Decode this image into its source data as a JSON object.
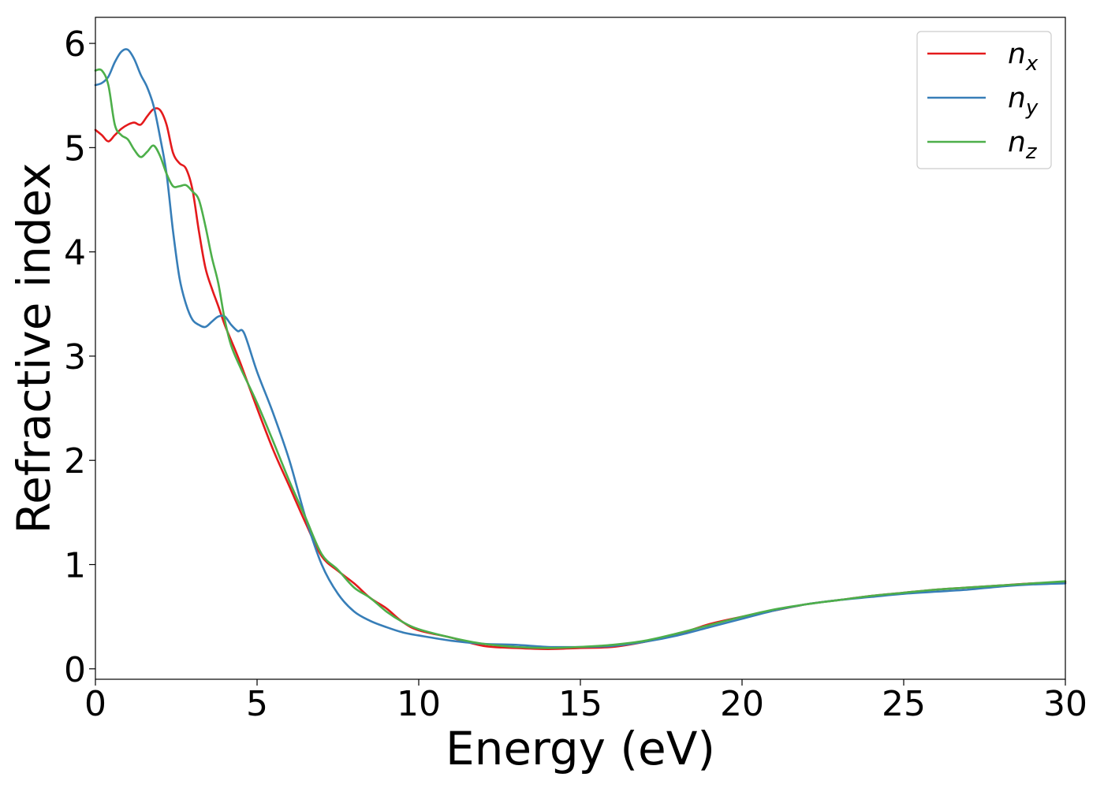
{
  "chart_data": {
    "type": "line",
    "xlabel": "Energy (eV)",
    "ylabel": "Refractive index",
    "xlim": [
      0,
      30
    ],
    "ylim": [
      -0.1,
      6.25
    ],
    "xticks": [
      0,
      5,
      10,
      15,
      20,
      25,
      30
    ],
    "yticks": [
      0,
      1,
      2,
      3,
      4,
      5,
      6
    ],
    "grid": false,
    "legend_position": "top-right",
    "series": [
      {
        "name": "n",
        "subscript": "x",
        "color": "#e41a1c",
        "x": [
          0,
          0.2,
          0.4,
          0.6,
          0.8,
          1.0,
          1.2,
          1.4,
          1.6,
          1.8,
          2.0,
          2.2,
          2.4,
          2.6,
          2.8,
          3.0,
          3.2,
          3.4,
          3.6,
          3.8,
          4.0,
          4.2,
          4.5,
          5.0,
          5.5,
          6.0,
          6.5,
          7.0,
          7.5,
          8.0,
          8.5,
          9.0,
          9.5,
          10,
          11,
          12,
          13,
          14,
          15,
          16,
          17,
          18,
          19,
          20,
          21,
          22,
          23,
          24,
          25,
          26,
          27,
          28,
          29,
          30
        ],
        "values": [
          5.17,
          5.12,
          5.06,
          5.12,
          5.18,
          5.22,
          5.24,
          5.22,
          5.3,
          5.37,
          5.36,
          5.22,
          4.95,
          4.85,
          4.8,
          4.6,
          4.2,
          3.85,
          3.65,
          3.48,
          3.3,
          3.15,
          2.92,
          2.5,
          2.1,
          1.75,
          1.4,
          1.08,
          0.94,
          0.82,
          0.68,
          0.58,
          0.45,
          0.37,
          0.3,
          0.22,
          0.2,
          0.19,
          0.2,
          0.21,
          0.26,
          0.33,
          0.43,
          0.5,
          0.56,
          0.62,
          0.66,
          0.7,
          0.73,
          0.76,
          0.78,
          0.8,
          0.82,
          0.83
        ]
      },
      {
        "name": "n",
        "subscript": "y",
        "color": "#377eb8",
        "x": [
          0,
          0.2,
          0.4,
          0.6,
          0.8,
          1.0,
          1.2,
          1.4,
          1.6,
          1.8,
          2.0,
          2.2,
          2.4,
          2.6,
          2.8,
          3.0,
          3.2,
          3.4,
          3.6,
          3.8,
          4.0,
          4.2,
          4.4,
          4.6,
          5.0,
          5.5,
          6.0,
          6.5,
          7.0,
          7.5,
          8.0,
          8.5,
          9.0,
          9.5,
          10,
          11,
          12,
          13,
          14,
          15,
          16,
          17,
          18,
          19,
          20,
          21,
          22,
          23,
          24,
          25,
          26,
          27,
          28,
          29,
          30
        ],
        "values": [
          5.6,
          5.62,
          5.68,
          5.82,
          5.92,
          5.94,
          5.85,
          5.7,
          5.58,
          5.4,
          5.1,
          4.75,
          4.2,
          3.75,
          3.5,
          3.35,
          3.3,
          3.28,
          3.33,
          3.38,
          3.38,
          3.3,
          3.24,
          3.22,
          2.85,
          2.45,
          2.0,
          1.45,
          1.0,
          0.72,
          0.55,
          0.46,
          0.4,
          0.35,
          0.32,
          0.27,
          0.24,
          0.23,
          0.21,
          0.21,
          0.22,
          0.26,
          0.32,
          0.4,
          0.48,
          0.56,
          0.62,
          0.66,
          0.69,
          0.72,
          0.74,
          0.76,
          0.79,
          0.81,
          0.82
        ]
      },
      {
        "name": "n",
        "subscript": "z",
        "color": "#4daf4a",
        "x": [
          0,
          0.2,
          0.4,
          0.6,
          0.8,
          1.0,
          1.2,
          1.4,
          1.6,
          1.8,
          2.0,
          2.2,
          2.4,
          2.6,
          2.8,
          3.0,
          3.2,
          3.4,
          3.6,
          3.8,
          4.0,
          4.2,
          4.5,
          5.0,
          5.5,
          6.0,
          6.5,
          7.0,
          7.5,
          8.0,
          8.5,
          9.0,
          9.5,
          10,
          11,
          12,
          13,
          14,
          15,
          16,
          17,
          18,
          19,
          20,
          21,
          22,
          23,
          24,
          25,
          26,
          27,
          28,
          29,
          30
        ],
        "values": [
          5.74,
          5.74,
          5.6,
          5.22,
          5.12,
          5.08,
          4.98,
          4.91,
          4.96,
          5.02,
          4.92,
          4.75,
          4.63,
          4.63,
          4.64,
          4.58,
          4.5,
          4.25,
          3.95,
          3.7,
          3.35,
          3.1,
          2.88,
          2.55,
          2.18,
          1.8,
          1.45,
          1.1,
          0.95,
          0.78,
          0.68,
          0.55,
          0.45,
          0.38,
          0.3,
          0.24,
          0.21,
          0.2,
          0.21,
          0.23,
          0.27,
          0.34,
          0.42,
          0.5,
          0.57,
          0.62,
          0.66,
          0.7,
          0.73,
          0.76,
          0.78,
          0.8,
          0.82,
          0.84
        ]
      }
    ]
  }
}
